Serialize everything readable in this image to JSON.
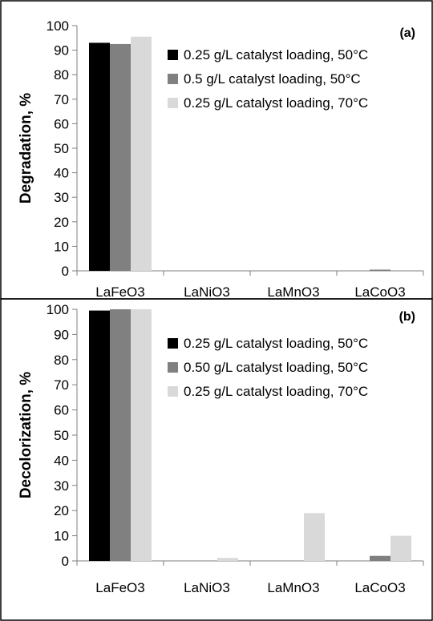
{
  "chart_data": [
    {
      "type": "bar",
      "panel_label": "(a)",
      "ylabel": "Degradation, %",
      "ylim": [
        0,
        100
      ],
      "yticks": [
        0,
        10,
        20,
        30,
        40,
        50,
        60,
        70,
        80,
        90,
        100
      ],
      "categories": [
        "LaFeO3",
        "LaNiO3",
        "LaMnO3",
        "LaCoO3"
      ],
      "legend_position": "top-right",
      "grid": false,
      "series": [
        {
          "name": "0.25 g/L catalyst loading, 50°C",
          "color": "#000000",
          "values": [
            93,
            0,
            0,
            0
          ]
        },
        {
          "name": "0.5 g/L catalyst loading, 50°C",
          "color": "#808080",
          "values": [
            92.5,
            0,
            0,
            0.5
          ]
        },
        {
          "name": "0.25 g/L catalyst loading, 70°C",
          "color": "#d9d9d9",
          "values": [
            95.5,
            0,
            0,
            0
          ]
        }
      ]
    },
    {
      "type": "bar",
      "panel_label": "(b)",
      "ylabel": "Decolorization, %",
      "ylim": [
        0,
        100
      ],
      "yticks": [
        0,
        10,
        20,
        30,
        40,
        50,
        60,
        70,
        80,
        90,
        100
      ],
      "categories": [
        "LaFeO3",
        "LaNiO3",
        "LaMnO3",
        "LaCoO3"
      ],
      "legend_position": "top-right",
      "grid": false,
      "series": [
        {
          "name": "0.25 g/L catalyst loading, 50°C",
          "color": "#000000",
          "values": [
            99.5,
            0,
            0,
            0
          ]
        },
        {
          "name": "0.50 g/L catalyst loading, 50°C",
          "color": "#808080",
          "values": [
            100,
            0,
            0,
            2
          ]
        },
        {
          "name": "0.25 g/L catalyst loading, 70°C",
          "color": "#d9d9d9",
          "values": [
            100,
            1.2,
            19,
            10
          ]
        }
      ]
    }
  ]
}
